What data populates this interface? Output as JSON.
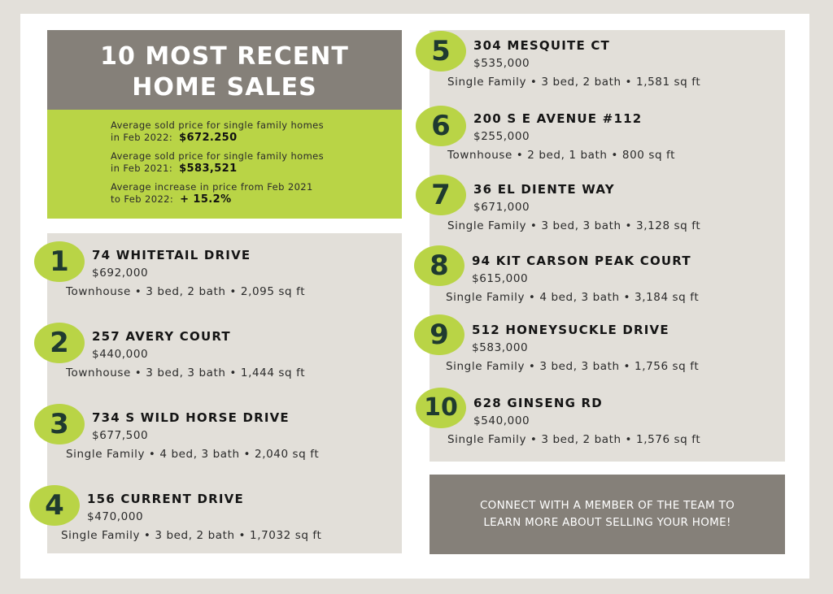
{
  "header": {
    "line1": "10 MOST RECENT",
    "line2": "HOME SALES"
  },
  "stats": [
    {
      "l1": "Average sold price for single family homes",
      "l2": "in Feb 2022:",
      "value": "$672.250"
    },
    {
      "l1": "Average sold price for single family homes",
      "l2": "in Feb 2021:",
      "value": "$583,521"
    },
    {
      "l1": "Average increase in price from Feb 2021",
      "l2": "to Feb 2022:",
      "value": "+ 15.2%"
    }
  ],
  "sales": [
    {
      "num": "1",
      "address": "74 WHITETAIL DRIVE",
      "price": "$692,000",
      "details": "Townhouse • 3 bed, 2 bath • 2,095 sq ft"
    },
    {
      "num": "2",
      "address": "257 AVERY COURT",
      "price": "$440,000",
      "details": "Townhouse • 3 bed, 3 bath • 1,444 sq ft"
    },
    {
      "num": "3",
      "address": "734 S WILD HORSE DRIVE",
      "price": "$677,500",
      "details": "Single Family • 4 bed, 3 bath • 2,040 sq ft"
    },
    {
      "num": "4",
      "address": "156 CURRENT DRIVE",
      "price": "$470,000",
      "details": "Single Family • 3 bed, 2 bath • 1,7032 sq ft"
    },
    {
      "num": "5",
      "address": "304 MESQUITE CT",
      "price": "$535,000",
      "details": "Single Family • 3 bed, 2 bath •  1,581 sq ft"
    },
    {
      "num": "6",
      "address": "200 S E AVENUE #112",
      "price": "$255,000",
      "details": "Townhouse • 2 bed, 1 bath • 800 sq ft"
    },
    {
      "num": "7",
      "address": "36 EL DIENTE WAY",
      "price": "$671,000",
      "details": "Single Family • 3 bed, 3 bath • 3,128 sq ft"
    },
    {
      "num": "8",
      "address": "94 KIT CARSON PEAK COURT",
      "price": "$615,000",
      "details": "Single Family • 4 bed, 3 bath • 3,184 sq ft"
    },
    {
      "num": "9",
      "address": "512 HONEYSUCKLE DRIVE",
      "price": "$583,000",
      "details": "Single Family • 3 bed, 3 bath • 1,756 sq ft"
    },
    {
      "num": "10",
      "address": "628 GINSENG RD",
      "price": "$540,000",
      "details": "Single Family • 3 bed, 2 bath • 1,576 sq ft"
    }
  ],
  "cta": {
    "line1": "CONNECT WITH A MEMBER OF THE TEAM TO",
    "line2": "LEARN MORE ABOUT SELLING YOUR HOME!"
  },
  "colors": {
    "accent": "#b9d446",
    "gray": "#858079",
    "panel": "#e2dfd9",
    "number": "#1f3a30"
  }
}
